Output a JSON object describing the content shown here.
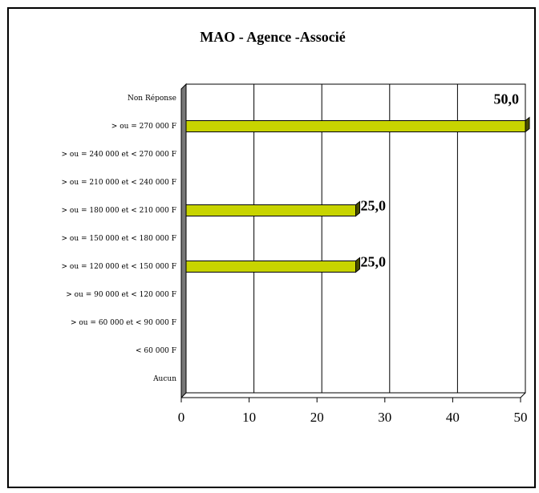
{
  "chart_data": {
    "type": "bar",
    "orientation": "horizontal",
    "title": "MAO - Agence -Associé",
    "categories": [
      "Non Réponse",
      "> ou = 270 000 F",
      "> ou = 240 000 et < 270 000 F",
      "> ou = 210 000 et < 240 000 F",
      "> ou = 180 000 et < 210 000 F",
      "> ou = 150 000 et < 180 000 F",
      "> ou = 120 000 et < 150 000 F",
      "> ou = 90 000 et < 120 000 F",
      "> ou = 60 000 et < 90 000 F",
      "< 60 000 F",
      "Aucun"
    ],
    "values": [
      0,
      50,
      0,
      0,
      25,
      0,
      25,
      0,
      0,
      0,
      0
    ],
    "value_labels": [
      null,
      "50,0",
      null,
      null,
      "25,0",
      null,
      "25,0",
      null,
      null,
      null,
      null
    ],
    "color": "#c8d400",
    "xlim": [
      0,
      50
    ],
    "xticks": [
      0,
      10,
      20,
      30,
      40,
      50
    ],
    "grid": true
  }
}
